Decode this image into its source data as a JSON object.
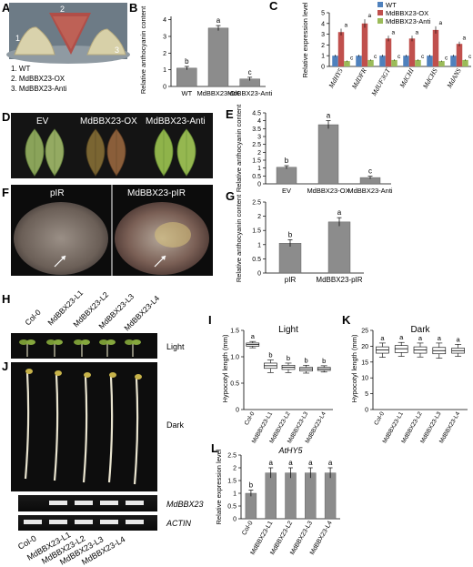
{
  "panels": {
    "A": {
      "letter": "A",
      "photo_numbers": [
        "1",
        "2",
        "3"
      ],
      "legend": [
        "1. WT",
        "2. MdBBX23-OX",
        "3. MdBBX23-Anti"
      ]
    },
    "B": {
      "letter": "B"
    },
    "C": {
      "letter": "C"
    },
    "D": {
      "letter": "D",
      "labels": [
        "EV",
        "MdBBX23-OX",
        "MdBBX23-Anti"
      ]
    },
    "E": {
      "letter": "E"
    },
    "F": {
      "letter": "F",
      "labels": [
        "pIR",
        "MdBBX23-pIR"
      ]
    },
    "G": {
      "letter": "G"
    },
    "H": {
      "letter": "H",
      "lines": [
        "Col-0",
        "MdBBX23-L1",
        "MdBBX23-L2",
        "MdBBX23-L3",
        "MdBBX23-L4"
      ],
      "condition": "Light"
    },
    "I": {
      "letter": "I"
    },
    "J": {
      "letter": "J",
      "condition": "Dark",
      "gel_labels": [
        "MdBBX23",
        "ACTIN"
      ],
      "lanes": [
        "Col-0",
        "MdBBX23-L1",
        "MdBBX23-L2",
        "MdBBX23-L3",
        "MdBBX23-L4"
      ]
    },
    "K": {
      "letter": "K"
    },
    "L": {
      "letter": "L"
    }
  },
  "chart_data": [
    {
      "panel": "B",
      "type": "bar",
      "title": "",
      "xlabel": "",
      "ylabel": "Relative anthocyanin content",
      "categories": [
        "WT",
        "MdBBX23-OX",
        "MdBBX23-Anti"
      ],
      "values": [
        1.1,
        3.5,
        0.45
      ],
      "errors": [
        0.1,
        0.15,
        0.1
      ],
      "letters": [
        "b",
        "a",
        "c"
      ],
      "ylim": [
        0,
        4.2
      ],
      "color": "#8c8c8c"
    },
    {
      "panel": "C",
      "type": "bar",
      "title": "",
      "xlabel": "",
      "ylabel": "Relative expression level",
      "categories": [
        "MdHY5",
        "MdDFR",
        "MdUF3GT",
        "MdCHI",
        "MdCHS",
        "MdANS"
      ],
      "series": [
        {
          "name": "WT",
          "color": "#4f81bd",
          "values": [
            1.0,
            1.0,
            1.0,
            1.0,
            1.0,
            1.0
          ],
          "letters": [
            "b",
            "b",
            "b",
            "b",
            "b",
            "b"
          ]
        },
        {
          "name": "MdBBX23-OX",
          "color": "#c0504d",
          "values": [
            3.2,
            4.0,
            2.6,
            2.6,
            3.4,
            2.1
          ],
          "letters": [
            "a",
            "a",
            "a",
            "a",
            "a",
            "a"
          ]
        },
        {
          "name": "MdBBX23-Anti",
          "color": "#9bbb59",
          "values": [
            0.5,
            0.6,
            0.6,
            0.6,
            0.5,
            0.6
          ],
          "letters": [
            "c",
            "c",
            "c",
            "c",
            "c",
            "c"
          ]
        }
      ],
      "ylim": [
        0,
        5
      ]
    },
    {
      "panel": "E",
      "type": "bar",
      "title": "",
      "xlabel": "",
      "ylabel": "Relative anthocyanin content",
      "categories": [
        "EV",
        "MdBBX23-OX",
        "MdBBX23-Anti"
      ],
      "values": [
        1.05,
        3.75,
        0.4
      ],
      "errors": [
        0.1,
        0.25,
        0.08
      ],
      "letters": [
        "b",
        "a",
        "c"
      ],
      "ylim": [
        0,
        4.5
      ],
      "yticks": [
        "0",
        "0.5",
        "1",
        "1.5",
        "2",
        "2.5",
        "3",
        "3.5",
        "4",
        "4.5"
      ],
      "color": "#8c8c8c"
    },
    {
      "panel": "G",
      "type": "bar",
      "title": "",
      "xlabel": "",
      "ylabel": "Relative anthocyanin content",
      "categories": [
        "pIR",
        "MdBBX23-pIR"
      ],
      "values": [
        1.05,
        1.8
      ],
      "errors": [
        0.12,
        0.15
      ],
      "letters": [
        "b",
        "a"
      ],
      "ylim": [
        0,
        2.5
      ],
      "yticks": [
        "0",
        "0.5",
        "1",
        "1.5",
        "2",
        "2.5"
      ],
      "color": "#8c8c8c"
    },
    {
      "panel": "I",
      "type": "box",
      "title": "Light",
      "xlabel": "",
      "ylabel": "Hypocotyl length (mm)",
      "categories": [
        "Col-0",
        "MdBBX23-L1",
        "MdBBX23-L2",
        "MdBBX23-L3",
        "MdBBX23-L4"
      ],
      "boxes": [
        [
          1.17,
          1.2,
          1.23,
          1.26,
          1.29
        ],
        [
          0.7,
          0.78,
          0.83,
          0.88,
          0.94
        ],
        [
          0.7,
          0.76,
          0.8,
          0.84,
          0.88
        ],
        [
          0.69,
          0.73,
          0.77,
          0.8,
          0.84
        ],
        [
          0.71,
          0.74,
          0.77,
          0.8,
          0.83
        ]
      ],
      "letters": [
        "a",
        "b",
        "b",
        "b",
        "b"
      ],
      "ylim": [
        0,
        1.5
      ],
      "yticks": [
        "0",
        "0.5",
        "1.0",
        "1.5"
      ]
    },
    {
      "panel": "K",
      "type": "box",
      "title": "Dark",
      "xlabel": "",
      "ylabel": "Hypocotyl length (mm)",
      "categories": [
        "Col-0",
        "MdBBX23-L1",
        "MdBBX23-L2",
        "MdBBX23-L3",
        "MdBBX23-L4"
      ],
      "boxes": [
        [
          16.5,
          17.8,
          18.8,
          19.8,
          21.0
        ],
        [
          16.8,
          18.0,
          19.2,
          20.2,
          21.2
        ],
        [
          16.6,
          17.8,
          18.8,
          19.8,
          21.0
        ],
        [
          16.2,
          17.6,
          18.6,
          19.6,
          21.0
        ],
        [
          16.8,
          17.8,
          18.6,
          19.4,
          20.6
        ]
      ],
      "letters": [
        "a",
        "a",
        "a",
        "a",
        "a"
      ],
      "ylim": [
        0,
        25
      ],
      "yticks": [
        "0",
        "5",
        "10",
        "15",
        "20",
        "25"
      ]
    },
    {
      "panel": "L",
      "type": "bar",
      "title": "AtHY5",
      "xlabel": "",
      "ylabel": "Relative expression level",
      "categories": [
        "Col-0",
        "MdBBX23-L1",
        "MdBBX23-L2",
        "MdBBX23-L3",
        "MdBBX23-L4"
      ],
      "values": [
        1.0,
        1.8,
        1.8,
        1.8,
        1.8
      ],
      "errors": [
        0.12,
        0.2,
        0.2,
        0.2,
        0.2
      ],
      "letters": [
        "b",
        "a",
        "a",
        "a",
        "a"
      ],
      "ylim": [
        0,
        2.5
      ],
      "yticks": [
        "0",
        "0.5",
        "1",
        "1.5",
        "2",
        "2.5"
      ],
      "color": "#8c8c8c"
    }
  ]
}
